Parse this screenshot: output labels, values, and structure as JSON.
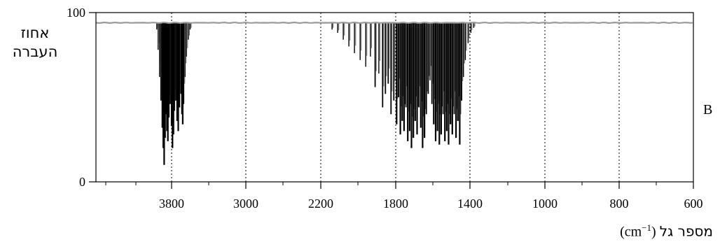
{
  "chart_data": {
    "type": "line",
    "title": "",
    "ylabel_line1": "אחוז",
    "ylabel_line2": "העברה",
    "xlabel_text": "מספר גל",
    "xlabel_unit_prefix": "(cm",
    "xlabel_unit_sup": "−1",
    "xlabel_unit_suffix": ")",
    "panel_label": "B",
    "xlim": [
      4400,
      600
    ],
    "ylim": [
      0,
      100
    ],
    "x_tick_labels": [
      "3800",
      "3000",
      "2200",
      "1800",
      "1400",
      "1000",
      "800",
      "600"
    ],
    "x_tick_positions": [
      3800,
      3000,
      2200,
      1800,
      1400,
      1000,
      800,
      600
    ],
    "y_tick_labels": [
      "0",
      "100"
    ],
    "y_tick_positions": [
      0,
      100
    ],
    "baseline_transmittance": 94,
    "grid": {
      "x_dotted": true,
      "y": false
    },
    "line_color": "#000000",
    "series": [
      {
        "bands": [
          {
            "x": 3960,
            "y": 90
          },
          {
            "x": 3945,
            "y": 78
          },
          {
            "x": 3930,
            "y": 62
          },
          {
            "x": 3915,
            "y": 48
          },
          {
            "x": 3900,
            "y": 32
          },
          {
            "x": 3890,
            "y": 20
          },
          {
            "x": 3880,
            "y": 10
          },
          {
            "x": 3870,
            "y": 26
          },
          {
            "x": 3860,
            "y": 40
          },
          {
            "x": 3850,
            "y": 30
          },
          {
            "x": 3840,
            "y": 24
          },
          {
            "x": 3830,
            "y": 38
          },
          {
            "x": 3815,
            "y": 46
          },
          {
            "x": 3800,
            "y": 33
          },
          {
            "x": 3790,
            "y": 20
          },
          {
            "x": 3780,
            "y": 28
          },
          {
            "x": 3770,
            "y": 42
          },
          {
            "x": 3755,
            "y": 48
          },
          {
            "x": 3740,
            "y": 36
          },
          {
            "x": 3728,
            "y": 30
          },
          {
            "x": 3715,
            "y": 44
          },
          {
            "x": 3700,
            "y": 52
          },
          {
            "x": 3690,
            "y": 40
          },
          {
            "x": 3680,
            "y": 34
          },
          {
            "x": 3670,
            "y": 46
          },
          {
            "x": 3655,
            "y": 62
          },
          {
            "x": 3640,
            "y": 74
          },
          {
            "x": 3620,
            "y": 84
          },
          {
            "x": 3600,
            "y": 90
          },
          {
            "x": 2140,
            "y": 90
          },
          {
            "x": 2110,
            "y": 88
          },
          {
            "x": 2080,
            "y": 84
          },
          {
            "x": 2050,
            "y": 80
          },
          {
            "x": 2020,
            "y": 76
          },
          {
            "x": 1990,
            "y": 72
          },
          {
            "x": 1960,
            "y": 68
          },
          {
            "x": 1935,
            "y": 74
          },
          {
            "x": 1910,
            "y": 56
          },
          {
            "x": 1890,
            "y": 64
          },
          {
            "x": 1870,
            "y": 44
          },
          {
            "x": 1855,
            "y": 52
          },
          {
            "x": 1840,
            "y": 58
          },
          {
            "x": 1825,
            "y": 40
          },
          {
            "x": 1810,
            "y": 48
          },
          {
            "x": 1795,
            "y": 34
          },
          {
            "x": 1785,
            "y": 50
          },
          {
            "x": 1775,
            "y": 28
          },
          {
            "x": 1765,
            "y": 36
          },
          {
            "x": 1755,
            "y": 30
          },
          {
            "x": 1745,
            "y": 44
          },
          {
            "x": 1735,
            "y": 24
          },
          {
            "x": 1725,
            "y": 30
          },
          {
            "x": 1715,
            "y": 20
          },
          {
            "x": 1705,
            "y": 26
          },
          {
            "x": 1695,
            "y": 36
          },
          {
            "x": 1685,
            "y": 28
          },
          {
            "x": 1675,
            "y": 44
          },
          {
            "x": 1665,
            "y": 32
          },
          {
            "x": 1655,
            "y": 20
          },
          {
            "x": 1645,
            "y": 26
          },
          {
            "x": 1635,
            "y": 40
          },
          {
            "x": 1625,
            "y": 52
          },
          {
            "x": 1615,
            "y": 60
          },
          {
            "x": 1605,
            "y": 46
          },
          {
            "x": 1595,
            "y": 34
          },
          {
            "x": 1585,
            "y": 24
          },
          {
            "x": 1575,
            "y": 30
          },
          {
            "x": 1565,
            "y": 22
          },
          {
            "x": 1555,
            "y": 28
          },
          {
            "x": 1545,
            "y": 40
          },
          {
            "x": 1535,
            "y": 24
          },
          {
            "x": 1525,
            "y": 30
          },
          {
            "x": 1515,
            "y": 22
          },
          {
            "x": 1505,
            "y": 34
          },
          {
            "x": 1495,
            "y": 28
          },
          {
            "x": 1485,
            "y": 40
          },
          {
            "x": 1475,
            "y": 26
          },
          {
            "x": 1465,
            "y": 36
          },
          {
            "x": 1455,
            "y": 22
          },
          {
            "x": 1445,
            "y": 48
          },
          {
            "x": 1435,
            "y": 62
          },
          {
            "x": 1425,
            "y": 72
          },
          {
            "x": 1410,
            "y": 82
          },
          {
            "x": 1395,
            "y": 88
          },
          {
            "x": 1380,
            "y": 91
          }
        ]
      }
    ]
  }
}
